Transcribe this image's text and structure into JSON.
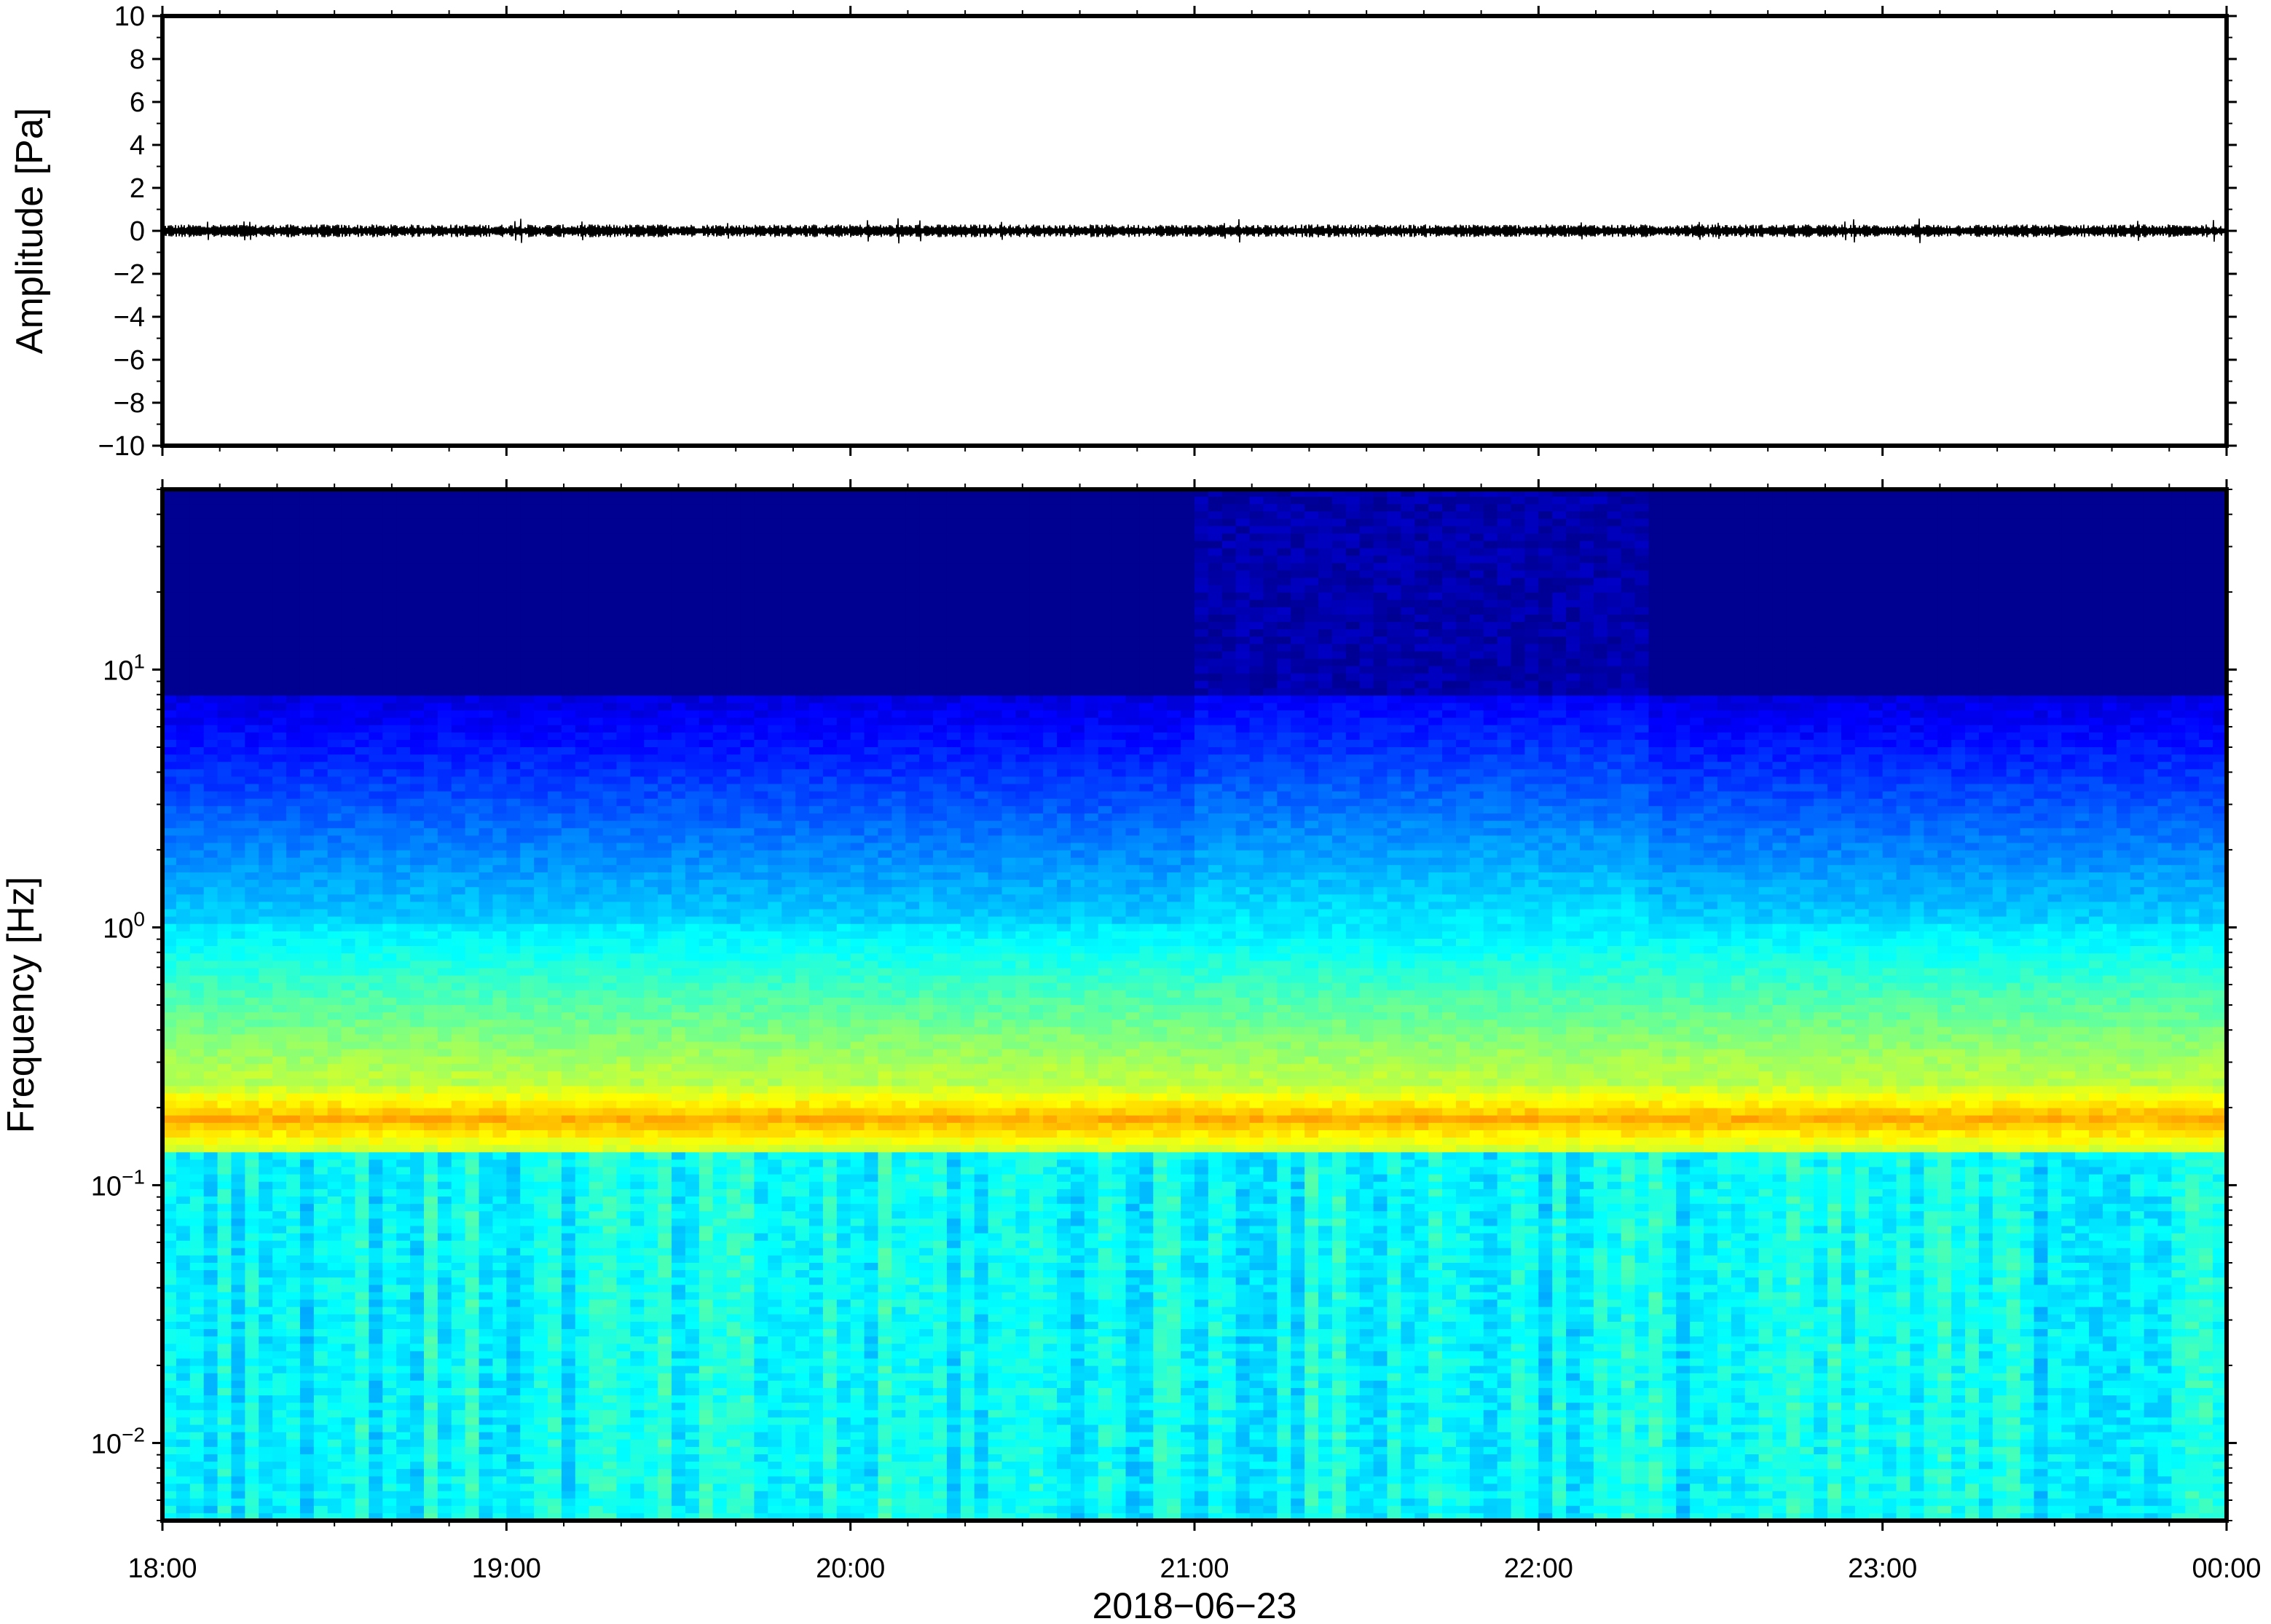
{
  "chart_data": [
    {
      "type": "line",
      "panel": "waveform",
      "ylabel": "Amplitude [Pa]",
      "ylim": [
        -10,
        10
      ],
      "yticks": [
        -10,
        -8,
        -6,
        -4,
        -2,
        0,
        2,
        4,
        6,
        8,
        10
      ],
      "ytick_labels": [
        "−10",
        "−8",
        "−6",
        "−4",
        "−2",
        "0",
        "2",
        "4",
        "6",
        "8",
        "10"
      ],
      "x_range": [
        "18:00",
        "00:00"
      ],
      "series_description_values": {
        "mean": 0,
        "typical_peak_amplitude": 0.3,
        "max_peak_amplitude": 0.6
      },
      "line_color": "#000000",
      "grid": false
    },
    {
      "type": "heatmap",
      "panel": "spectrogram",
      "ylabel": "Frequency [Hz]",
      "yscale": "log",
      "ylim": [
        0.005,
        50
      ],
      "ytick_values": [
        0.01,
        0.1,
        1,
        10
      ],
      "ytick_labels": [
        {
          "base": "10",
          "exp": "−2"
        },
        {
          "base": "10",
          "exp": "−1"
        },
        {
          "base": "10",
          "exp": "0"
        },
        {
          "base": "10",
          "exp": "1"
        }
      ],
      "xlabel": "2018−06−23",
      "xticks": [
        "18:00",
        "19:00",
        "20:00",
        "21:00",
        "22:00",
        "23:00",
        "00:00"
      ],
      "colormap": "jet",
      "colormap_colors": [
        "#00007f",
        "#0000ff",
        "#007fff",
        "#00ffff",
        "#7fff7f",
        "#ffff00",
        "#ff7f00",
        "#ff0000"
      ],
      "dominant_band_hz": [
        0.13,
        0.25
      ],
      "dominant_band_peak_hz": 0.18,
      "elevated_high_freq_window": [
        "21:00",
        "22:20"
      ],
      "grid": false
    }
  ]
}
